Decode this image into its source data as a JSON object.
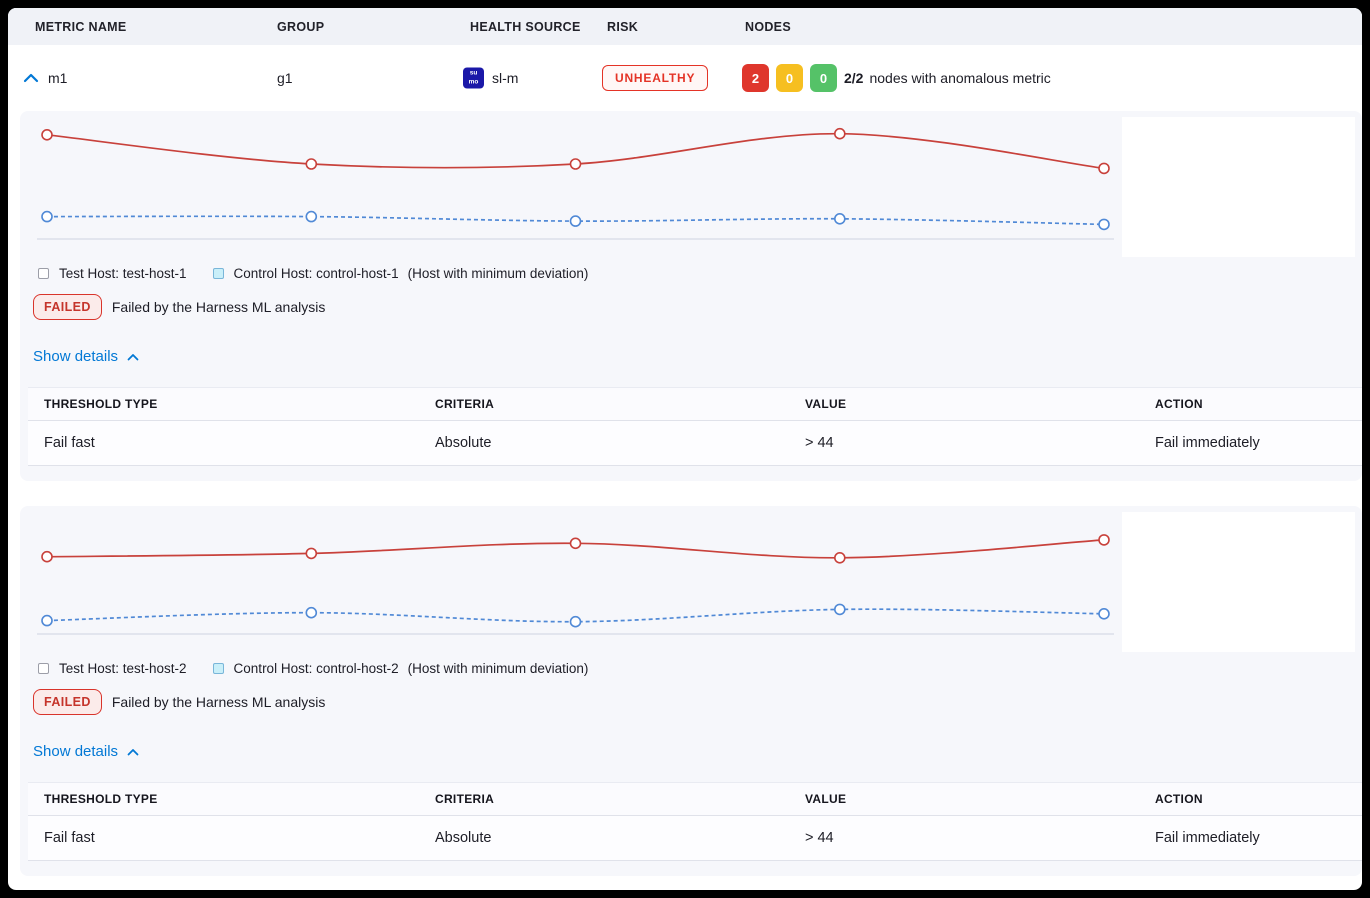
{
  "colors": {
    "accent_blue": "#0278D5",
    "risk_red": "#E43326",
    "failed_red": "#C5342B",
    "node_red": "#DF362C",
    "node_yellow": "#F6BF20",
    "node_green": "#55C268",
    "card_bg": "#F6F7FB",
    "header_bg": "#F0F2F7",
    "test_line": "#C8413B",
    "control_line": "#5089D6"
  },
  "columns": {
    "metric_name": "METRIC NAME",
    "group": "GROUP",
    "health_source": "HEALTH SOURCE",
    "risk": "RISK",
    "nodes": "NODES"
  },
  "metric_row": {
    "name": "m1",
    "group": "g1",
    "health_source": "sl-m",
    "health_source_logo": {
      "line1": "su",
      "line2": "mo"
    },
    "risk": "UNHEALTHY",
    "node_counts": {
      "failed": "2",
      "warning": "0",
      "healthy": "0"
    },
    "nodes_ratio": "2/2",
    "nodes_text": "nodes with anomalous metric"
  },
  "sections": [
    {
      "legend": {
        "test_label": "Test Host: test-host-1",
        "control_label": "Control Host: control-host-1",
        "control_note": "(Host with minimum deviation)"
      },
      "status": {
        "badge": "FAILED",
        "message": "Failed by the Harness ML analysis"
      },
      "show_details_label": "Show details",
      "table": {
        "headers": [
          "THRESHOLD TYPE",
          "CRITERIA",
          "VALUE",
          "ACTION"
        ],
        "rows": [
          [
            "Fail fast",
            "Absolute",
            "> 44",
            "Fail immediately"
          ]
        ]
      }
    },
    {
      "legend": {
        "test_label": "Test Host: test-host-2",
        "control_label": "Control Host: control-host-2",
        "control_note": "(Host with minimum deviation)"
      },
      "status": {
        "badge": "FAILED",
        "message": "Failed by the Harness ML analysis"
      },
      "show_details_label": "Show details",
      "table": {
        "headers": [
          "THRESHOLD TYPE",
          "CRITERIA",
          "VALUE",
          "ACTION"
        ],
        "rows": [
          [
            "Fail fast",
            "Absolute",
            "> 44",
            "Fail immediately"
          ]
        ]
      }
    }
  ],
  "chart_data": [
    {
      "type": "line",
      "x_count": 5,
      "ylim": [
        0,
        100
      ],
      "grid": false,
      "axis_color": "#CDD3E2",
      "series": [
        {
          "name": "Test Host: test-host-1",
          "color": "#C8413B",
          "style": "solid",
          "values": [
            93,
            67,
            67,
            94,
            63
          ]
        },
        {
          "name": "Control Host: control-host-1",
          "color": "#5089D6",
          "style": "dashed",
          "values": [
            20,
            20,
            16,
            18,
            13
          ]
        }
      ]
    },
    {
      "type": "line",
      "x_count": 5,
      "ylim": [
        0,
        100
      ],
      "grid": false,
      "axis_color": "#CDD3E2",
      "series": [
        {
          "name": "Test Host: test-host-2",
          "color": "#C8413B",
          "style": "solid",
          "values": [
            69,
            72,
            81,
            68,
            84
          ]
        },
        {
          "name": "Control Host: control-host-2",
          "color": "#5089D6",
          "style": "dashed",
          "values": [
            12,
            19,
            11,
            22,
            18
          ]
        }
      ]
    }
  ]
}
